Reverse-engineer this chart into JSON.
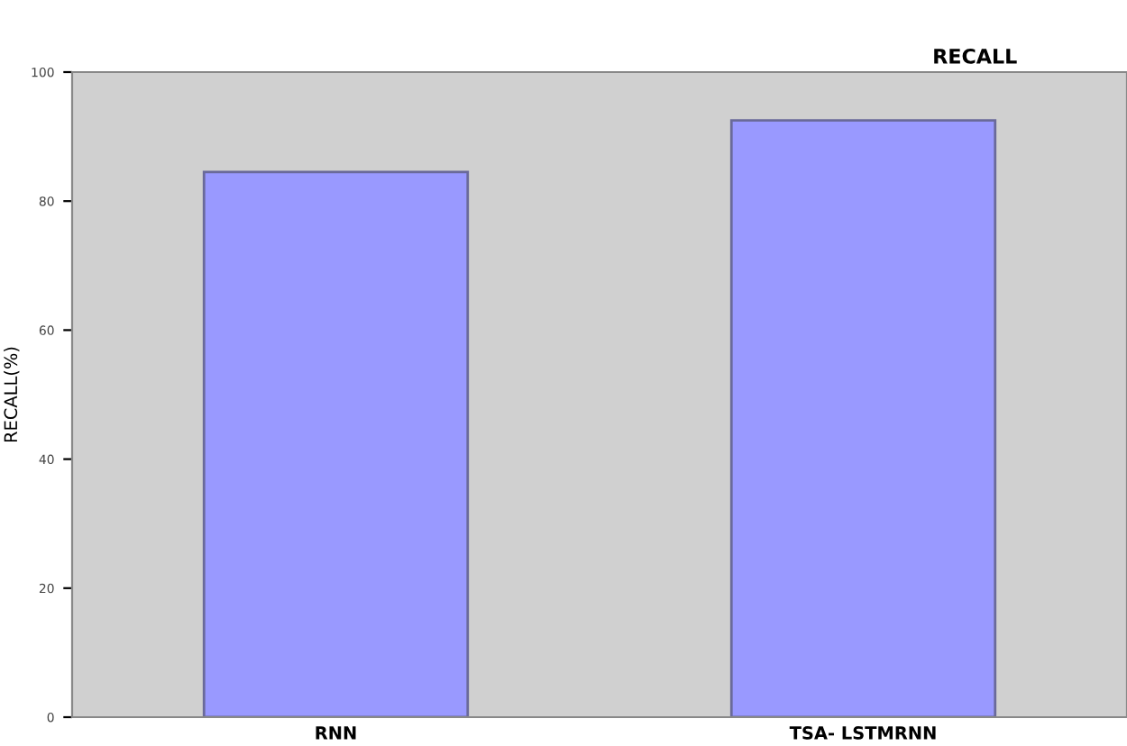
{
  "chart_data": {
    "type": "bar",
    "title": "RECALL",
    "ylabel": "RECALL(%)",
    "categories": [
      "RNN",
      "TSA- LSTMRNN"
    ],
    "values": [
      84.5,
      92.5
    ],
    "color": "#9999ff",
    "ylim": [
      0,
      100
    ],
    "yticks": [
      0,
      20,
      40,
      60,
      80,
      100
    ],
    "grid": false,
    "legend": false
  }
}
